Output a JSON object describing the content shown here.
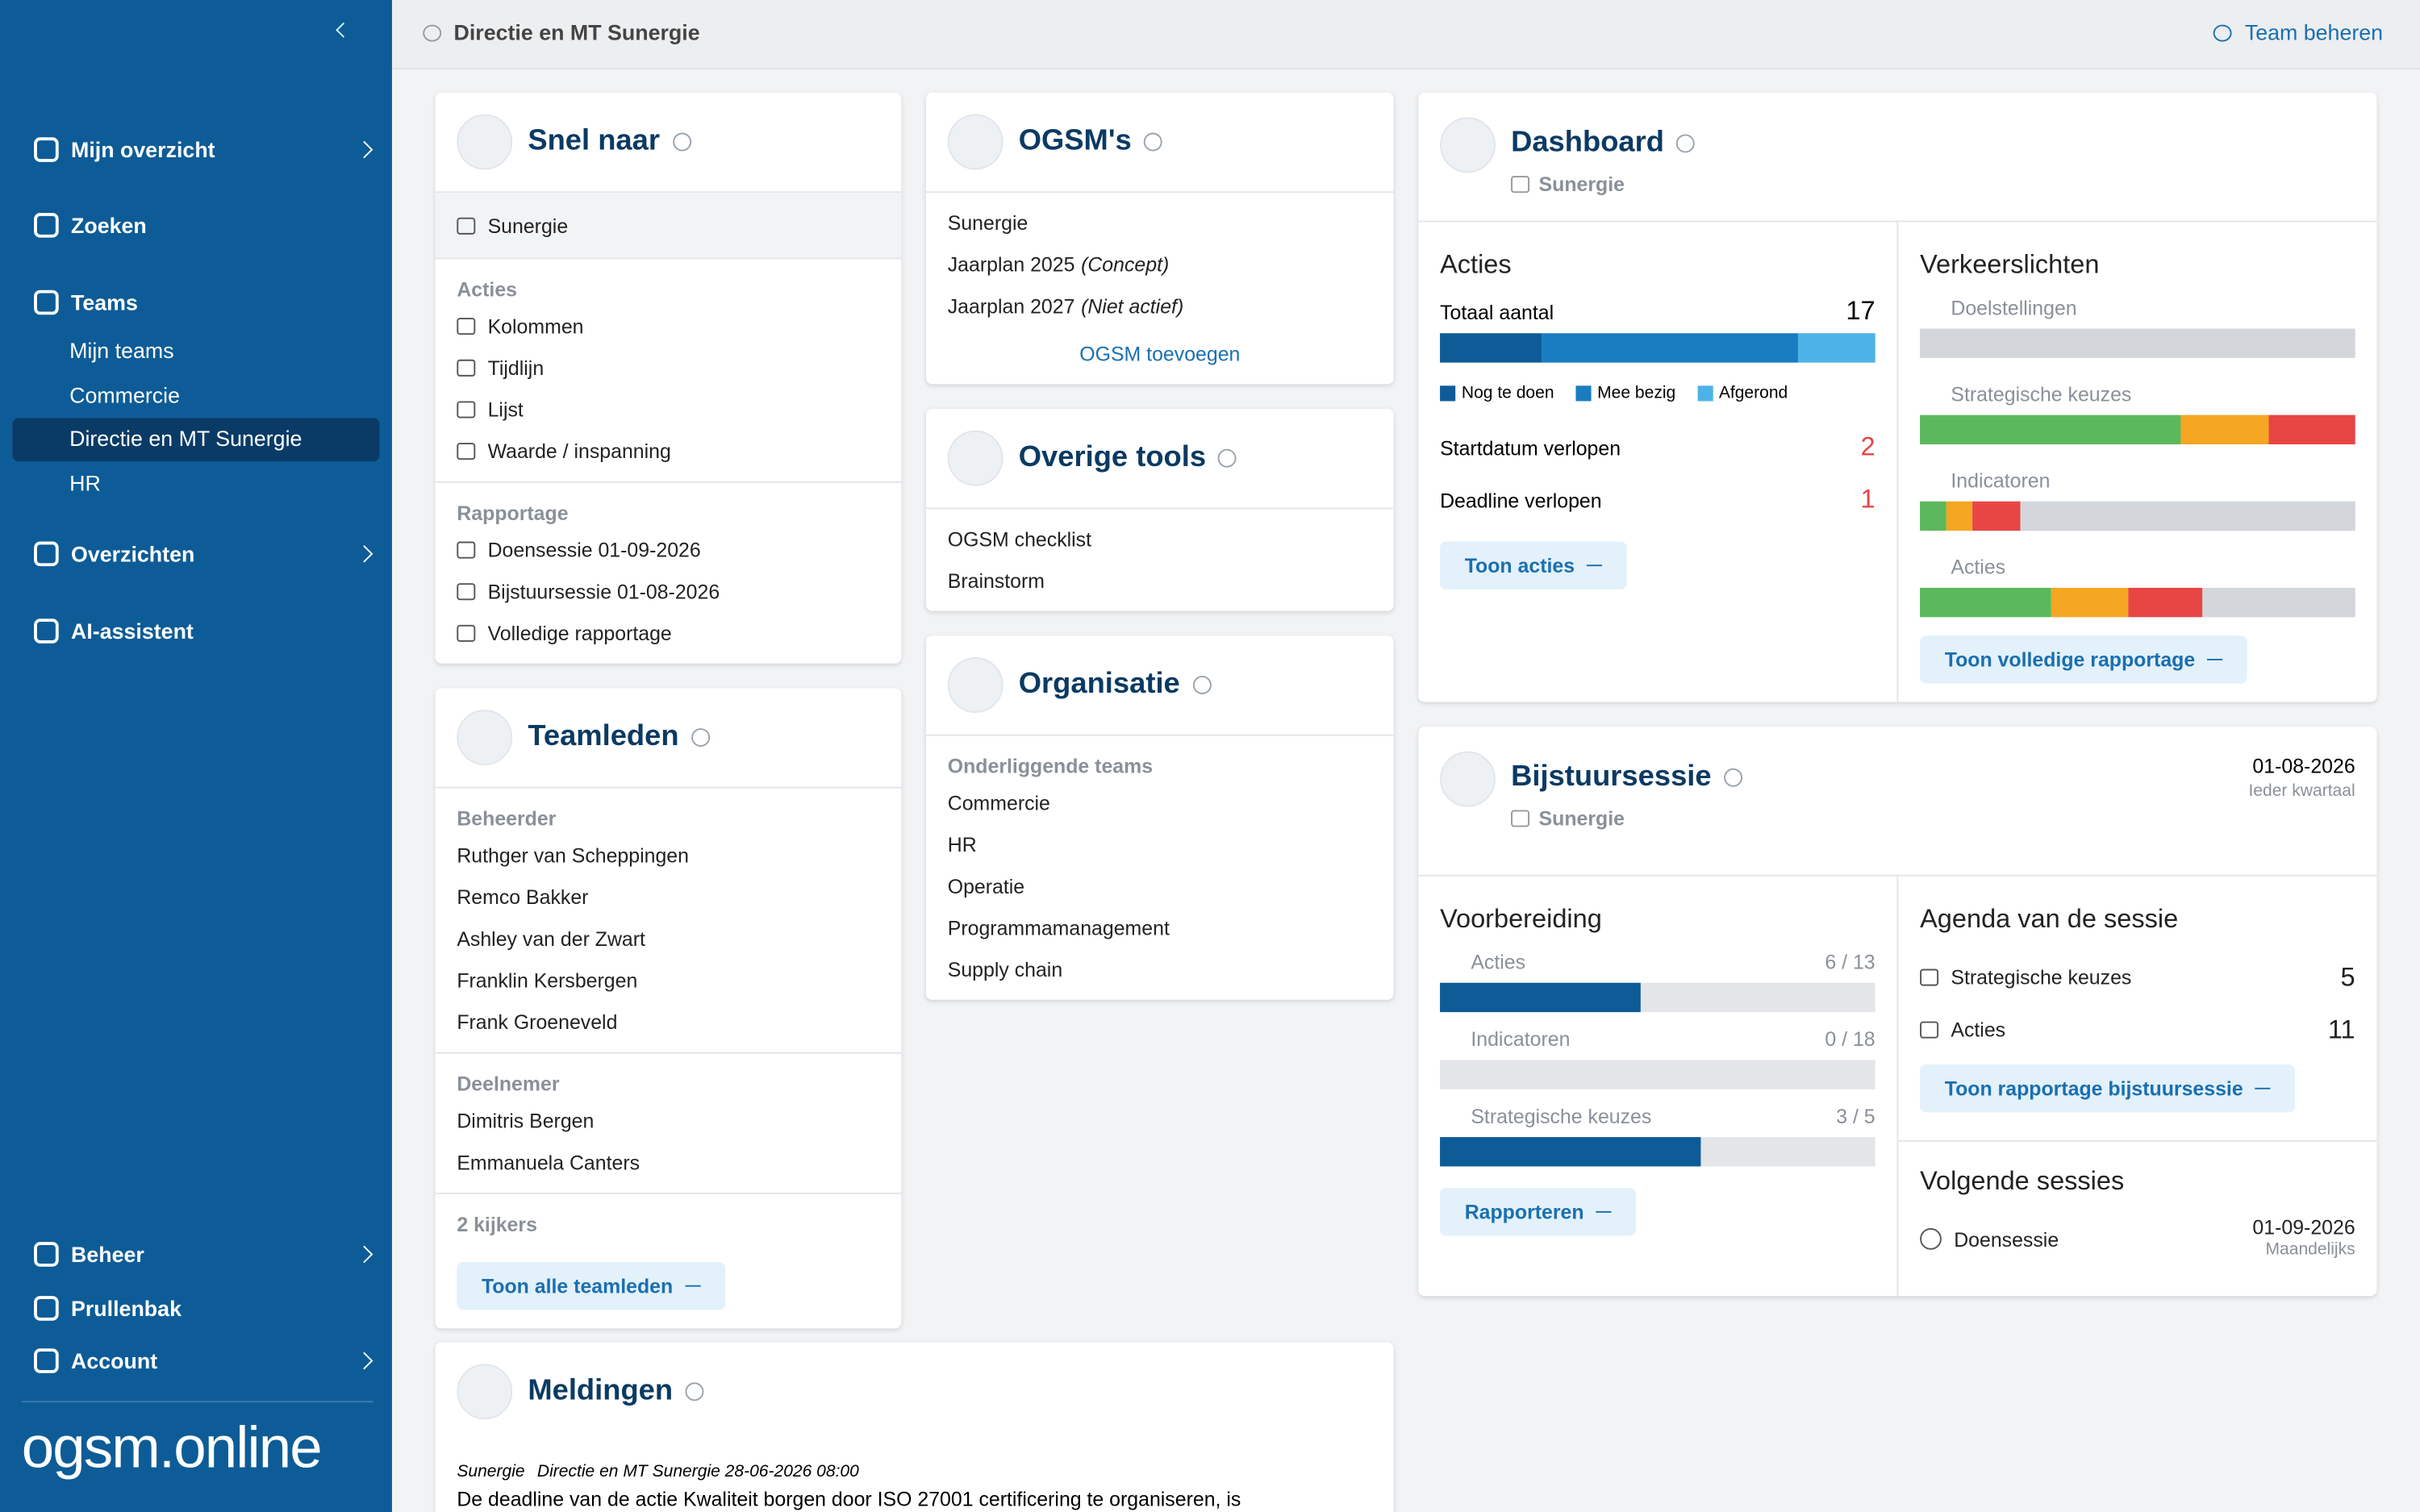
{
  "sidebar": {
    "nav": [
      "Mijn overzicht",
      "Zoeken",
      "Teams"
    ],
    "teams": [
      "Mijn teams",
      "Commercie",
      "Directie en MT Sunergie",
      "HR"
    ],
    "nav2": [
      "Overzichten",
      "AI-assistent"
    ],
    "bottom": [
      "Beheer",
      "Prullenbak",
      "Account"
    ],
    "logo": "ogsm.online"
  },
  "header": {
    "breadcrumb": "Directie en MT Sunergie",
    "action": "Team beheren"
  },
  "snel_naar": {
    "title": "Snel naar",
    "current": "Sunergie",
    "sections": [
      {
        "heading": "Acties",
        "items": [
          "Kolommen",
          "Tijdlijn",
          "Lijst",
          "Waarde / inspanning"
        ]
      },
      {
        "heading": "Rapportage",
        "items": [
          "Doensessie 01-09-2026",
          "Bijstuursessie 01-08-2026",
          "Volledige rapportage"
        ]
      }
    ]
  },
  "teamleden": {
    "title": "Teamleden",
    "groups": [
      {
        "heading": "Beheerder",
        "members": [
          "Ruthger van Scheppingen",
          "Remco Bakker",
          "Ashley van der Zwart",
          "Franklin Kersbergen",
          "Frank Groeneveld"
        ]
      },
      {
        "heading": "Deelnemer",
        "members": [
          "Dimitris Bergen",
          "Emmanuela Canters"
        ]
      }
    ],
    "viewers": "2 kijkers",
    "button": "Toon alle teamleden"
  },
  "meldingen": {
    "title": "Meldingen",
    "path": [
      "Sunergie",
      "Directie en MT Sunergie 28-06-2026 08:00"
    ],
    "text": "De deadline van de actie Kwaliteit borgen door ISO 27001 certificering te organiseren, is"
  },
  "ogsms": {
    "title": "OGSM's",
    "items": [
      {
        "name": "Sunergie"
      },
      {
        "name": "Jaarplan 2025",
        "status": "(Concept)"
      },
      {
        "name": "Jaarplan 2027",
        "status": "(Niet actief)"
      }
    ],
    "add": "OGSM toevoegen"
  },
  "overige_tools": {
    "title": "Overige tools",
    "items": [
      "OGSM checklist",
      "Brainstorm"
    ]
  },
  "organisatie": {
    "title": "Organisatie",
    "heading": "Onderliggende teams",
    "items": [
      "Commercie",
      "HR",
      "Operatie",
      "Programmamanagement",
      "Supply chain"
    ]
  },
  "dashboard": {
    "title": "Dashboard",
    "subtitle": "Sunergie",
    "acties": {
      "title": "Acties",
      "total_label": "Totaal aantal",
      "total": 17,
      "segments": [
        {
          "name": "Nog te doen",
          "color": "#0d5c97",
          "value": 4
        },
        {
          "name": "Mee bezig",
          "color": "#1a7cc1",
          "value": 10
        },
        {
          "name": "Afgerond",
          "color": "#4db3e6",
          "value": 3
        }
      ],
      "rows": [
        {
          "label": "Startdatum verlopen",
          "value": 2
        },
        {
          "label": "Deadline verlopen",
          "value": 1
        }
      ],
      "button": "Toon acties"
    },
    "verkeerslichten": {
      "title": "Verkeerslichten",
      "colors": [
        "#5cb85c",
        "#f5a623",
        "#e84545",
        "#d3d6da"
      ],
      "rows": [
        {
          "label": "Doelstellingen",
          "values": [
            0,
            0,
            0,
            100
          ]
        },
        {
          "label": "Strategische keuzes",
          "values": [
            60,
            20,
            20,
            0
          ]
        },
        {
          "label": "Indicatoren",
          "values": [
            6,
            6,
            11,
            77
          ]
        },
        {
          "label": "Acties",
          "values": [
            30,
            18,
            17,
            35
          ]
        }
      ],
      "button": "Toon volledige rapportage"
    }
  },
  "bijstuursessie": {
    "title": "Bijstuursessie",
    "subtitle": "Sunergie",
    "date": "01-08-2026",
    "recurrence": "Ieder kwartaal",
    "voorbereiding": {
      "title": "Voorbereiding",
      "rows": [
        {
          "label": "Acties",
          "done": 6,
          "total": 13,
          "value_label": "6 / 13"
        },
        {
          "label": "Indicatoren",
          "done": 0,
          "total": 18,
          "value_label": "0 / 18"
        },
        {
          "label": "Strategische keuzes",
          "done": 3,
          "total": 5,
          "value_label": "3 / 5"
        }
      ],
      "button": "Rapporteren"
    },
    "agenda": {
      "title": "Agenda van de sessie",
      "rows": [
        {
          "label": "Strategische keuzes",
          "value": 5
        },
        {
          "label": "Acties",
          "value": 11
        }
      ],
      "button": "Toon rapportage bijstuursessie"
    },
    "volgende": {
      "title": "Volgende sessies",
      "items": [
        {
          "name": "Doensessie",
          "date": "01-09-2026",
          "recurrence": "Maandelijks"
        }
      ]
    }
  }
}
